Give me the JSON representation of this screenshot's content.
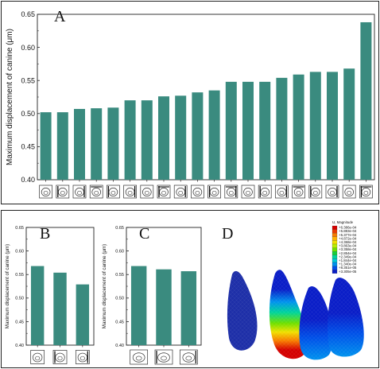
{
  "panels": {
    "A": {
      "letter": "A"
    },
    "B": {
      "letter": "B"
    },
    "C": {
      "letter": "C"
    },
    "D": {
      "letter": "D"
    }
  },
  "chart_data": [
    {
      "id": "A",
      "type": "bar",
      "ylabel": "Maximum displacement of canine (μm)",
      "ylim": [
        0.4,
        0.65
      ],
      "yticks": [
        "0.40",
        "0.45",
        "0.50",
        "0.55",
        "0.60",
        "0.65"
      ],
      "values": [
        0.502,
        0.502,
        0.507,
        0.508,
        0.509,
        0.52,
        0.52,
        0.526,
        0.527,
        0.532,
        0.535,
        0.548,
        0.548,
        0.548,
        0.554,
        0.559,
        0.563,
        0.563,
        0.568,
        0.638
      ],
      "bar_color": "#3a8b7f",
      "xaxis_icons": "tooth-cross-section-icons"
    },
    {
      "id": "B",
      "type": "bar",
      "ylabel": "Maximum displacement of canine (μm)",
      "ylim": [
        0.4,
        0.65
      ],
      "yticks": [
        "0.40",
        "0.45",
        "0.50",
        "0.55",
        "0.60",
        "0.65"
      ],
      "values": [
        0.568,
        0.554,
        0.529
      ],
      "bar_color": "#3a8b7f",
      "xaxis_icons": "tooth-cross-section-icons"
    },
    {
      "id": "C",
      "type": "bar",
      "ylabel": "Maximum displacement of canine (μm)",
      "ylim": [
        0.4,
        0.65
      ],
      "yticks": [
        "0.40",
        "0.45",
        "0.50",
        "0.55",
        "0.60",
        "0.65"
      ],
      "values": [
        0.568,
        0.561,
        0.557
      ],
      "bar_color": "#3a8b7f",
      "xaxis_icons": "tooth-cross-section-icons"
    }
  ],
  "contour": {
    "title": "U, Magnitude",
    "levels": [
      "+6.386e-04",
      "+5.883e-04",
      "+5.377e-04",
      "+4.872e-04",
      "+4.368e-04",
      "+3.863e-04",
      "+3.358e-04",
      "+2.854e-04",
      "+2.349e-04",
      "+1.844e-04",
      "+1.340e-04",
      "+8.351e-05",
      "+3.305e-05"
    ],
    "colors": [
      "#d40000",
      "#e83a00",
      "#f77a00",
      "#ffb000",
      "#f0e000",
      "#b8ee00",
      "#6ee000",
      "#17d13a",
      "#00d49a",
      "#00c8d8",
      "#0092ee",
      "#0050e8",
      "#0a1ec8"
    ],
    "mesh_color": "#2a3aa8"
  }
}
